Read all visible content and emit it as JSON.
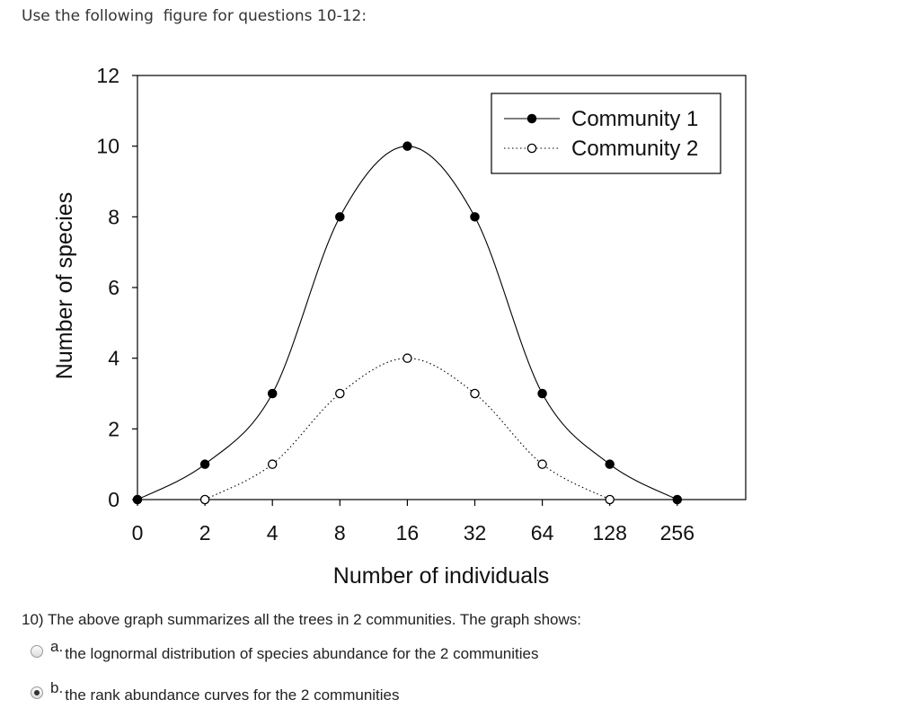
{
  "intro_text": "Use the following  figure for questions 10-12:",
  "chart_data": {
    "type": "line",
    "xlabel": "Number of individuals",
    "ylabel": "Number of species",
    "categories": [
      "0",
      "2",
      "4",
      "8",
      "16",
      "32",
      "64",
      "128",
      "256"
    ],
    "ylim": [
      0,
      12
    ],
    "yticks": [
      "0",
      "2",
      "4",
      "6",
      "8",
      "10",
      "12"
    ],
    "legend_position": "top-right",
    "grid": false,
    "series": [
      {
        "name": "Community 1",
        "style": "solid",
        "marker": "filled-circle",
        "values": [
          0,
          1,
          3,
          8,
          10,
          8,
          3,
          1,
          0
        ]
      },
      {
        "name": "Community 2",
        "style": "dotted",
        "marker": "open-circle",
        "values": [
          null,
          0,
          1,
          3,
          4,
          3,
          1,
          0,
          null
        ]
      }
    ]
  },
  "question": {
    "text": "10) The above graph summarizes all the trees in 2 communities. The graph shows:",
    "options": [
      {
        "letter": "a.",
        "text": "the lognormal distribution of species abundance for the 2 communities",
        "selected": false
      },
      {
        "letter": "b.",
        "text": "the rank abundance curves for the 2 communities",
        "selected": true
      }
    ]
  }
}
